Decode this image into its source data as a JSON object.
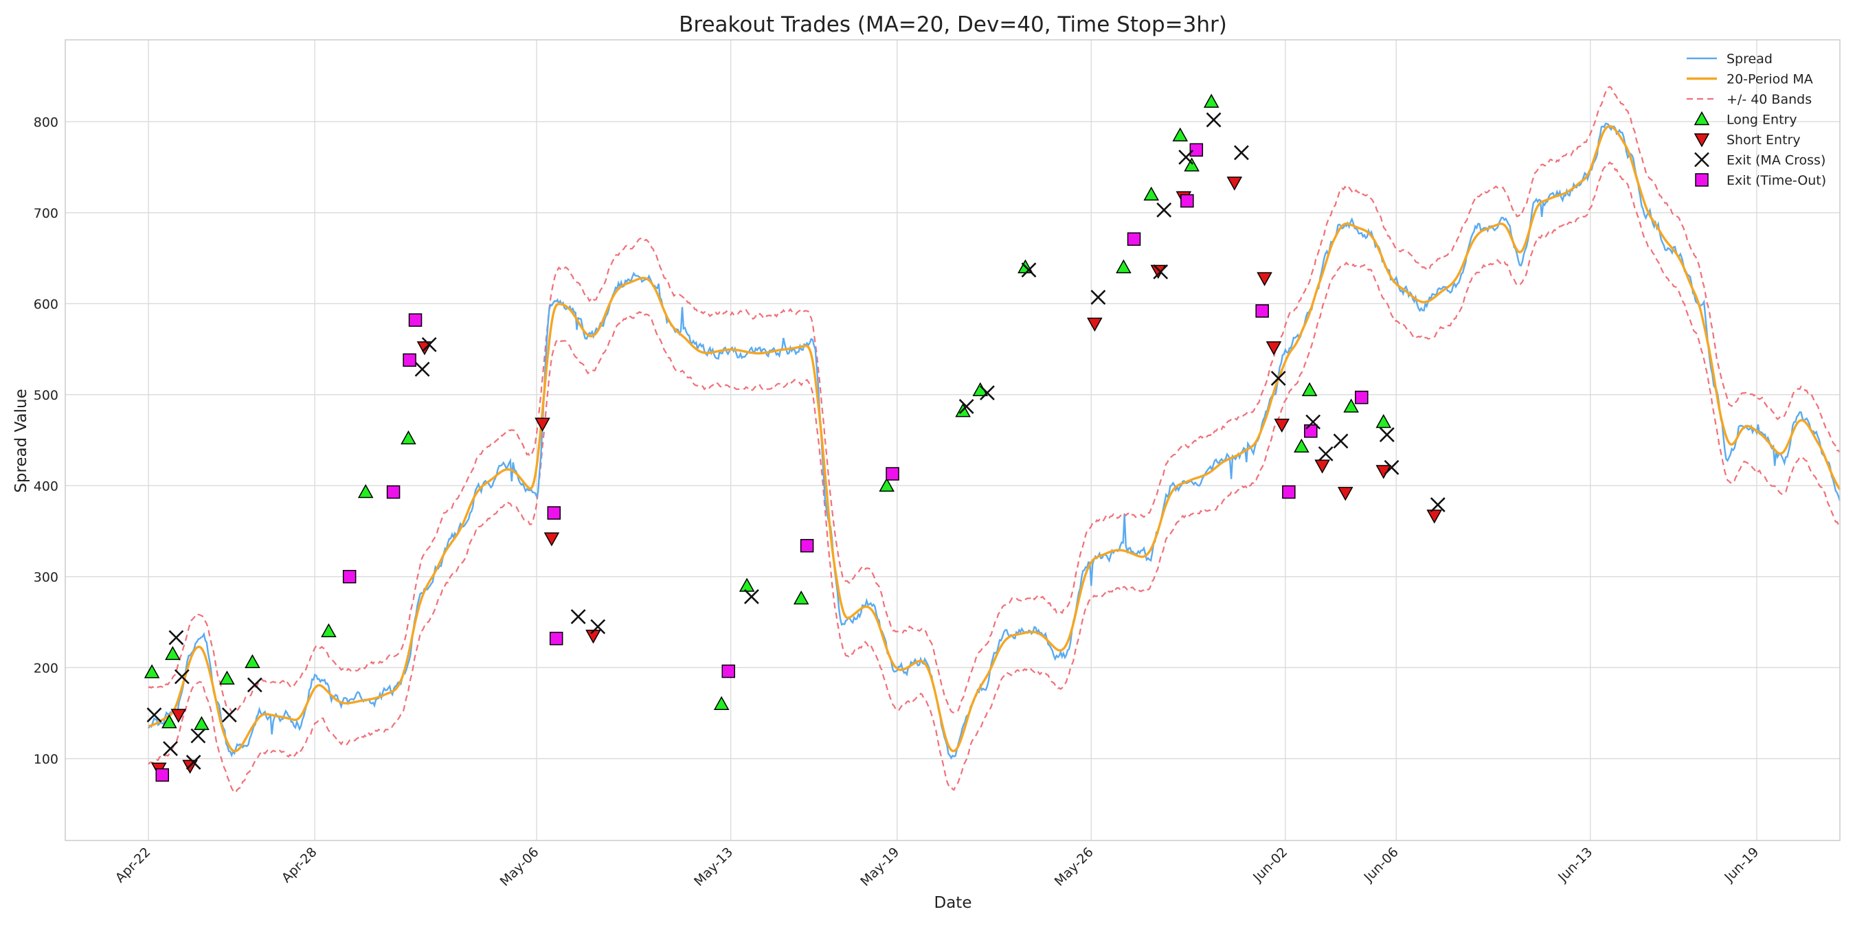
{
  "chart_data": {
    "type": "line",
    "title": "Breakout Trades (MA=20, Dev=40, Time Stop=3hr)",
    "xlabel": "Date",
    "ylabel": "Spread Value",
    "x_range": [
      "2024-04-19",
      "2024-06-22"
    ],
    "ylim": [
      10,
      890
    ],
    "x_ticks": [
      {
        "label": "Apr-22",
        "date": "2024-04-22"
      },
      {
        "label": "Apr-28",
        "date": "2024-04-28"
      },
      {
        "label": "May-06",
        "date": "2024-05-06"
      },
      {
        "label": "May-13",
        "date": "2024-05-13"
      },
      {
        "label": "May-19",
        "date": "2024-05-19"
      },
      {
        "label": "May-26",
        "date": "2024-05-26"
      },
      {
        "label": "Jun-02",
        "date": "2024-06-02"
      },
      {
        "label": "Jun-06",
        "date": "2024-06-06"
      },
      {
        "label": "Jun-13",
        "date": "2024-06-13"
      },
      {
        "label": "Jun-19",
        "date": "2024-06-19"
      }
    ],
    "y_ticks": [
      100,
      200,
      300,
      400,
      500,
      600,
      700,
      800
    ],
    "grid": true,
    "legend_position": "top-right",
    "band_offset": 40,
    "colors": {
      "spread": "#5aaaf0",
      "ma": "#f5a623",
      "bands": "#f07078",
      "long": "#22ee22",
      "short": "#e01515",
      "exit_cross": "#111111",
      "exit_timeout": "#ee11ee"
    },
    "legend": [
      {
        "key": "spread",
        "label": "Spread"
      },
      {
        "key": "ma",
        "label": "20-Period MA"
      },
      {
        "key": "bands",
        "label": "+/- 40 Bands"
      },
      {
        "key": "long",
        "label": "Long Entry"
      },
      {
        "key": "short",
        "label": "Short Entry"
      },
      {
        "key": "exit_cross",
        "label": "Exit (MA Cross)"
      },
      {
        "key": "exit_timeout",
        "label": "Exit (Time-Out)"
      }
    ],
    "ma_path": [
      [
        "2024-04-22",
        135
      ],
      [
        "2024-04-23",
        150
      ],
      [
        "2024-04-23 12:00",
        215
      ],
      [
        "2024-04-24",
        230
      ],
      [
        "2024-04-24 12:00",
        150
      ],
      [
        "2024-04-25",
        100
      ],
      [
        "2024-04-25 12:00",
        120
      ],
      [
        "2024-04-26",
        150
      ],
      [
        "2024-04-27",
        145
      ],
      [
        "2024-04-27 12:00",
        140
      ],
      [
        "2024-04-28",
        185
      ],
      [
        "2024-04-29",
        160
      ],
      [
        "2024-04-30",
        165
      ],
      [
        "2024-05-01",
        175
      ],
      [
        "2024-05-02",
        290
      ],
      [
        "2024-05-03",
        340
      ],
      [
        "2024-05-04",
        400
      ],
      [
        "2024-05-05",
        420
      ],
      [
        "2024-05-06",
        390
      ],
      [
        "2024-05-06 12:00",
        600
      ],
      [
        "2024-05-07",
        600
      ],
      [
        "2024-05-08",
        560
      ],
      [
        "2024-05-09",
        620
      ],
      [
        "2024-05-10",
        630
      ],
      [
        "2024-05-11",
        570
      ],
      [
        "2024-05-12",
        545
      ],
      [
        "2024-05-13",
        550
      ],
      [
        "2024-05-14",
        545
      ],
      [
        "2024-05-15",
        550
      ],
      [
        "2024-05-16",
        555
      ],
      [
        "2024-05-16 12:00",
        370
      ],
      [
        "2024-05-17",
        250
      ],
      [
        "2024-05-18",
        270
      ],
      [
        "2024-05-19",
        195
      ],
      [
        "2024-05-20",
        210
      ],
      [
        "2024-05-21",
        100
      ],
      [
        "2024-05-22",
        180
      ],
      [
        "2024-05-23",
        235
      ],
      [
        "2024-05-24",
        240
      ],
      [
        "2024-05-25",
        215
      ],
      [
        "2024-05-26",
        320
      ],
      [
        "2024-05-27",
        330
      ],
      [
        "2024-05-28",
        320
      ],
      [
        "2024-05-29",
        400
      ],
      [
        "2024-05-30",
        410
      ],
      [
        "2024-05-31",
        430
      ],
      [
        "2024-06-01",
        445
      ],
      [
        "2024-06-01 12:00",
        495
      ],
      [
        "2024-06-02",
        540
      ],
      [
        "2024-06-02 12:00",
        560
      ],
      [
        "2024-06-03",
        600
      ],
      [
        "2024-06-03 12:00",
        650
      ],
      [
        "2024-06-04",
        690
      ],
      [
        "2024-06-05",
        680
      ],
      [
        "2024-06-06",
        620
      ],
      [
        "2024-06-07",
        600
      ],
      [
        "2024-06-08",
        620
      ],
      [
        "2024-06-09",
        680
      ],
      [
        "2024-06-10",
        690
      ],
      [
        "2024-06-10 12:00",
        640
      ],
      [
        "2024-06-11",
        710
      ],
      [
        "2024-06-12",
        720
      ],
      [
        "2024-06-13",
        740
      ],
      [
        "2024-06-13 12:00",
        800
      ],
      [
        "2024-06-14",
        790
      ],
      [
        "2024-06-14 12:00",
        760
      ],
      [
        "2024-06-15",
        700
      ],
      [
        "2024-06-16",
        660
      ],
      [
        "2024-06-17",
        600
      ],
      [
        "2024-06-17 12:00",
        510
      ],
      [
        "2024-06-18",
        430
      ],
      [
        "2024-06-18 12:00",
        470
      ],
      [
        "2024-06-19",
        460
      ],
      [
        "2024-06-20",
        430
      ],
      [
        "2024-06-20 12:00",
        480
      ],
      [
        "2024-06-21",
        460
      ],
      [
        "2024-06-21 12:00",
        430
      ],
      [
        "2024-06-22",
        390
      ]
    ],
    "long_entries": [
      [
        "2024-04-22 03:00",
        195
      ],
      [
        "2024-04-22 18:00",
        140
      ],
      [
        "2024-04-22 21:00",
        215
      ],
      [
        "2024-04-23 22:00",
        138
      ],
      [
        "2024-04-24 20:00",
        188
      ],
      [
        "2024-04-25 18:00",
        206
      ],
      [
        "2024-04-28 12:00",
        240
      ],
      [
        "2024-04-29 20:00",
        393
      ],
      [
        "2024-05-01 09:00",
        452
      ],
      [
        "2024-05-12 16:00",
        160
      ],
      [
        "2024-05-13 14:00",
        290
      ],
      [
        "2024-05-15 13:00",
        276
      ],
      [
        "2024-05-18 15:00",
        400
      ],
      [
        "2024-05-21 09:00",
        482
      ],
      [
        "2024-05-22 00:00",
        505
      ],
      [
        "2024-05-23 15:00",
        640
      ],
      [
        "2024-05-27 04:00",
        640
      ],
      [
        "2024-05-28 04:00",
        720
      ],
      [
        "2024-05-29 05:00",
        785
      ],
      [
        "2024-05-29 15:00",
        752
      ],
      [
        "2024-05-30 08:00",
        822
      ],
      [
        "2024-06-02 14:00",
        443
      ],
      [
        "2024-06-02 21:00",
        505
      ],
      [
        "2024-06-04 09:00",
        487
      ],
      [
        "2024-06-05 13:00",
        470
      ]
    ],
    "short_entries": [
      [
        "2024-04-22 09:00",
        89
      ],
      [
        "2024-04-23 02:00",
        148
      ],
      [
        "2024-04-23 12:00",
        92
      ],
      [
        "2024-05-01 23:00",
        552
      ],
      [
        "2024-05-06 05:00",
        468
      ],
      [
        "2024-05-06 13:00",
        342
      ],
      [
        "2024-05-08 01:00",
        235
      ],
      [
        "2024-05-26 03:00",
        578
      ],
      [
        "2024-05-28 10:00",
        636
      ],
      [
        "2024-05-29 08:00",
        717
      ],
      [
        "2024-05-31 04:00",
        733
      ],
      [
        "2024-06-01 06:00",
        628
      ],
      [
        "2024-06-01 14:00",
        552
      ],
      [
        "2024-06-01 21:00",
        467
      ],
      [
        "2024-06-03 08:00",
        422
      ],
      [
        "2024-06-04 04:00",
        392
      ],
      [
        "2024-06-05 13:00",
        416
      ],
      [
        "2024-06-07 09:00",
        367
      ]
    ],
    "exits_ma_cross": [
      [
        "2024-04-22 05:00",
        148
      ],
      [
        "2024-04-22 19:00",
        111
      ],
      [
        "2024-04-23 00:00",
        233
      ],
      [
        "2024-04-23 05:00",
        190
      ],
      [
        "2024-04-23 15:00",
        96
      ],
      [
        "2024-04-23 19:00",
        125
      ],
      [
        "2024-04-24 22:00",
        148
      ],
      [
        "2024-04-25 20:00",
        181
      ],
      [
        "2024-05-01 21:00",
        528
      ],
      [
        "2024-05-02 03:00",
        555
      ],
      [
        "2024-05-07 12:00",
        256
      ],
      [
        "2024-05-08 05:00",
        245
      ],
      [
        "2024-05-13 18:00",
        278
      ],
      [
        "2024-05-21 12:00",
        487
      ],
      [
        "2024-05-22 06:00",
        502
      ],
      [
        "2024-05-23 18:00",
        637
      ],
      [
        "2024-05-26 06:00",
        607
      ],
      [
        "2024-05-28 12:00",
        635
      ],
      [
        "2024-05-28 15:00",
        703
      ],
      [
        "2024-05-29 10:00",
        761
      ],
      [
        "2024-05-30 10:00",
        802
      ],
      [
        "2024-05-31 10:00",
        766
      ],
      [
        "2024-06-01 18:00",
        518
      ],
      [
        "2024-06-03 00:00",
        470
      ],
      [
        "2024-06-03 11:00",
        435
      ],
      [
        "2024-06-04 00:00",
        449
      ],
      [
        "2024-06-05 16:00",
        456
      ],
      [
        "2024-06-05 20:00",
        420
      ],
      [
        "2024-06-07 12:00",
        379
      ]
    ],
    "exits_timeout": [
      [
        "2024-04-22 12:00",
        82
      ],
      [
        "2024-04-29 06:00",
        300
      ],
      [
        "2024-04-30 20:00",
        393
      ],
      [
        "2024-05-01 10:00",
        538
      ],
      [
        "2024-05-01 15:00",
        582
      ],
      [
        "2024-05-06 15:00",
        370
      ],
      [
        "2024-05-06 17:00",
        232
      ],
      [
        "2024-05-12 22:00",
        196
      ],
      [
        "2024-05-15 18:00",
        334
      ],
      [
        "2024-05-18 20:00",
        413
      ],
      [
        "2024-05-27 13:00",
        671
      ],
      [
        "2024-05-29 11:00",
        713
      ],
      [
        "2024-05-29 19:00",
        769
      ],
      [
        "2024-06-01 04:00",
        592
      ],
      [
        "2024-06-02 03:00",
        393
      ],
      [
        "2024-06-02 22:00",
        460
      ],
      [
        "2024-06-04 18:00",
        497
      ]
    ]
  }
}
